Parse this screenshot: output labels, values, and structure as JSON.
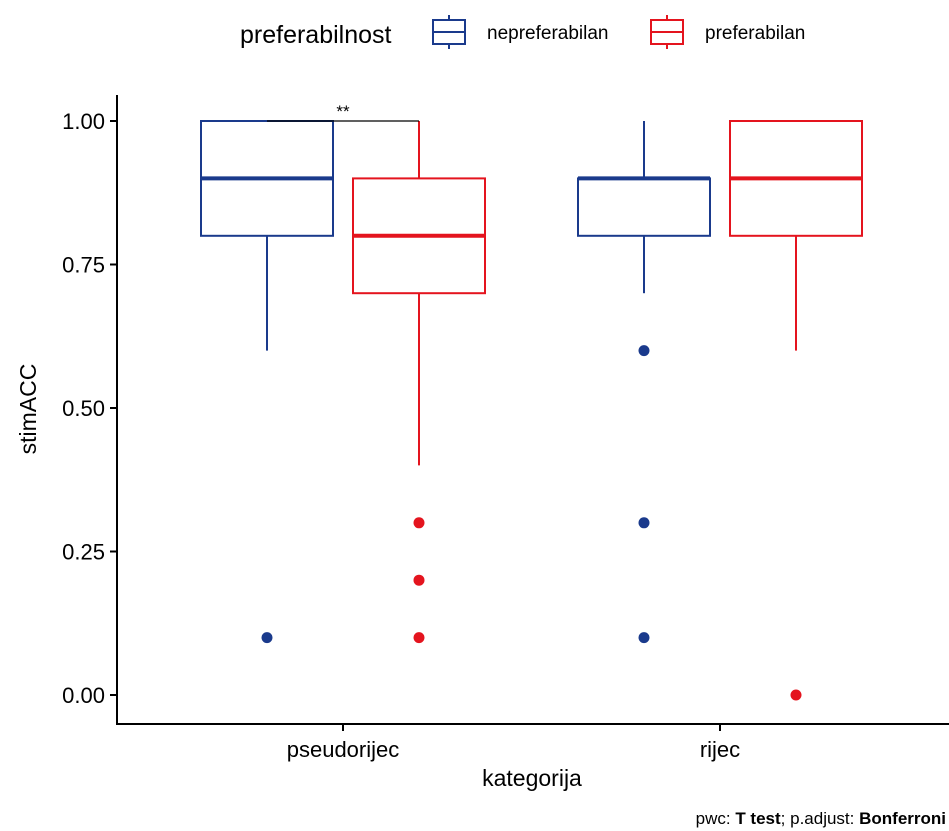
{
  "chart_data": {
    "type": "box",
    "title": "",
    "xlabel": "kategorija",
    "ylabel": "stimACC",
    "ylim": [
      -0.04,
      1.05
    ],
    "yticks": [
      0,
      0.25,
      0.5,
      0.75,
      1
    ],
    "ytick_labels": [
      "0.00",
      "0.25",
      "0.50",
      "0.75",
      "1.00"
    ],
    "categories": [
      "pseudorijec",
      "rijec"
    ],
    "legend": {
      "title": "preferabilnost",
      "placement": "top",
      "entries": [
        "nepreferabilan",
        "preferabilan"
      ]
    },
    "series": [
      {
        "name": "nepreferabilan",
        "color": "#1a3a8c",
        "boxes": [
          {
            "category": "pseudorijec",
            "min": 0.6,
            "q1": 0.8,
            "median": 0.9,
            "q3": 1.0,
            "max": 1.0,
            "outliers": [
              0.1
            ]
          },
          {
            "category": "rijec",
            "min": 0.7,
            "q1": 0.8,
            "median": 0.9,
            "q3": 0.9,
            "max": 1.0,
            "outliers": [
              0.6,
              0.3,
              0.1
            ]
          }
        ]
      },
      {
        "name": "preferabilan",
        "color": "#e4141e",
        "boxes": [
          {
            "category": "pseudorijec",
            "min": 0.4,
            "q1": 0.7,
            "median": 0.8,
            "q3": 0.9,
            "max": 1.0,
            "outliers": [
              0.3,
              0.2,
              0.1
            ]
          },
          {
            "category": "rijec",
            "min": 0.6,
            "q1": 0.8,
            "median": 0.9,
            "q3": 1.0,
            "max": 1.0,
            "outliers": [
              0.0
            ]
          }
        ]
      }
    ],
    "significance": [
      {
        "category": "pseudorijec",
        "from": "nepreferabilan",
        "to": "preferabilan",
        "y": 1.0,
        "label": "**"
      }
    ],
    "caption": {
      "prefix": "pwc: ",
      "test": "T test",
      "middle": "; p.adjust: ",
      "method": "Bonferroni"
    }
  }
}
